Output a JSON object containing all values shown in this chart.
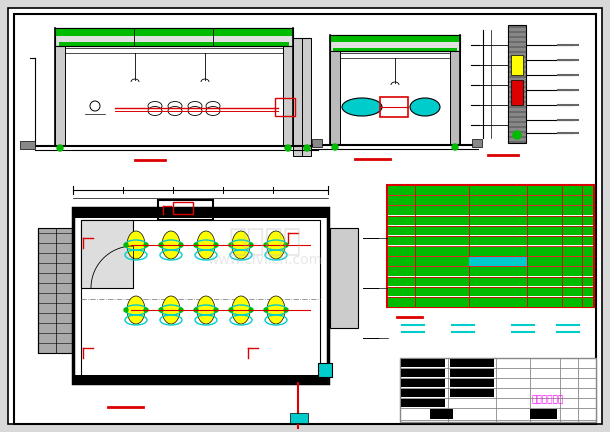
{
  "bg_color": "#d8d8d8",
  "paper_color": "#ffffff",
  "green": "#00bb00",
  "cyan": "#00cccc",
  "red": "#dd0000",
  "yellow": "#ffff00",
  "black": "#000000",
  "title_color": "#ff00ff",
  "title_text": "鼓风机工艺图",
  "gray_line": "#888888",
  "watermark_color": "#bbbbbb"
}
